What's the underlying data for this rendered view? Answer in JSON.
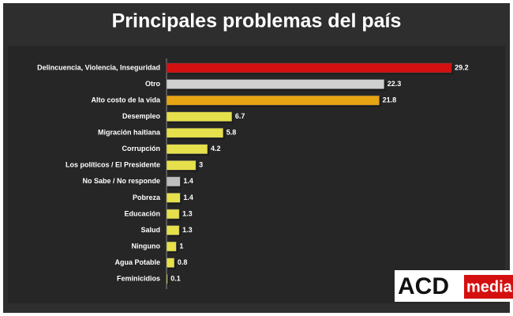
{
  "chart_data": {
    "type": "barh",
    "title": "Principales problemas del país",
    "categories": [
      "Delincuencia, Violencia, Inseguridad",
      "Otro",
      "Alto costo de la vida",
      "Desempleo",
      "Migración haitiana",
      "Corrupción",
      "Los políticos / El Presidente",
      "No Sabe / No responde",
      "Pobreza",
      "Educación",
      "Salud",
      "Ninguno",
      "Agua Potable",
      "Feminicidios"
    ],
    "values": [
      29.2,
      22.3,
      21.8,
      6.7,
      5.8,
      4.2,
      3,
      1.4,
      1.4,
      1.3,
      1.3,
      1,
      0.8,
      0.1
    ],
    "colors": [
      "#d40f0f",
      "#cfcfcf",
      "#e8a513",
      "#e6e04c",
      "#e6e04c",
      "#e6e04c",
      "#e6e04c",
      "#bdbdbd",
      "#e6e04c",
      "#e6e04c",
      "#e6e04c",
      "#e6e04c",
      "#e6e04c",
      "#e6e04c"
    ],
    "xlim": [
      0,
      30
    ]
  },
  "logo": {
    "brand": "ACD",
    "suffix": "media"
  }
}
